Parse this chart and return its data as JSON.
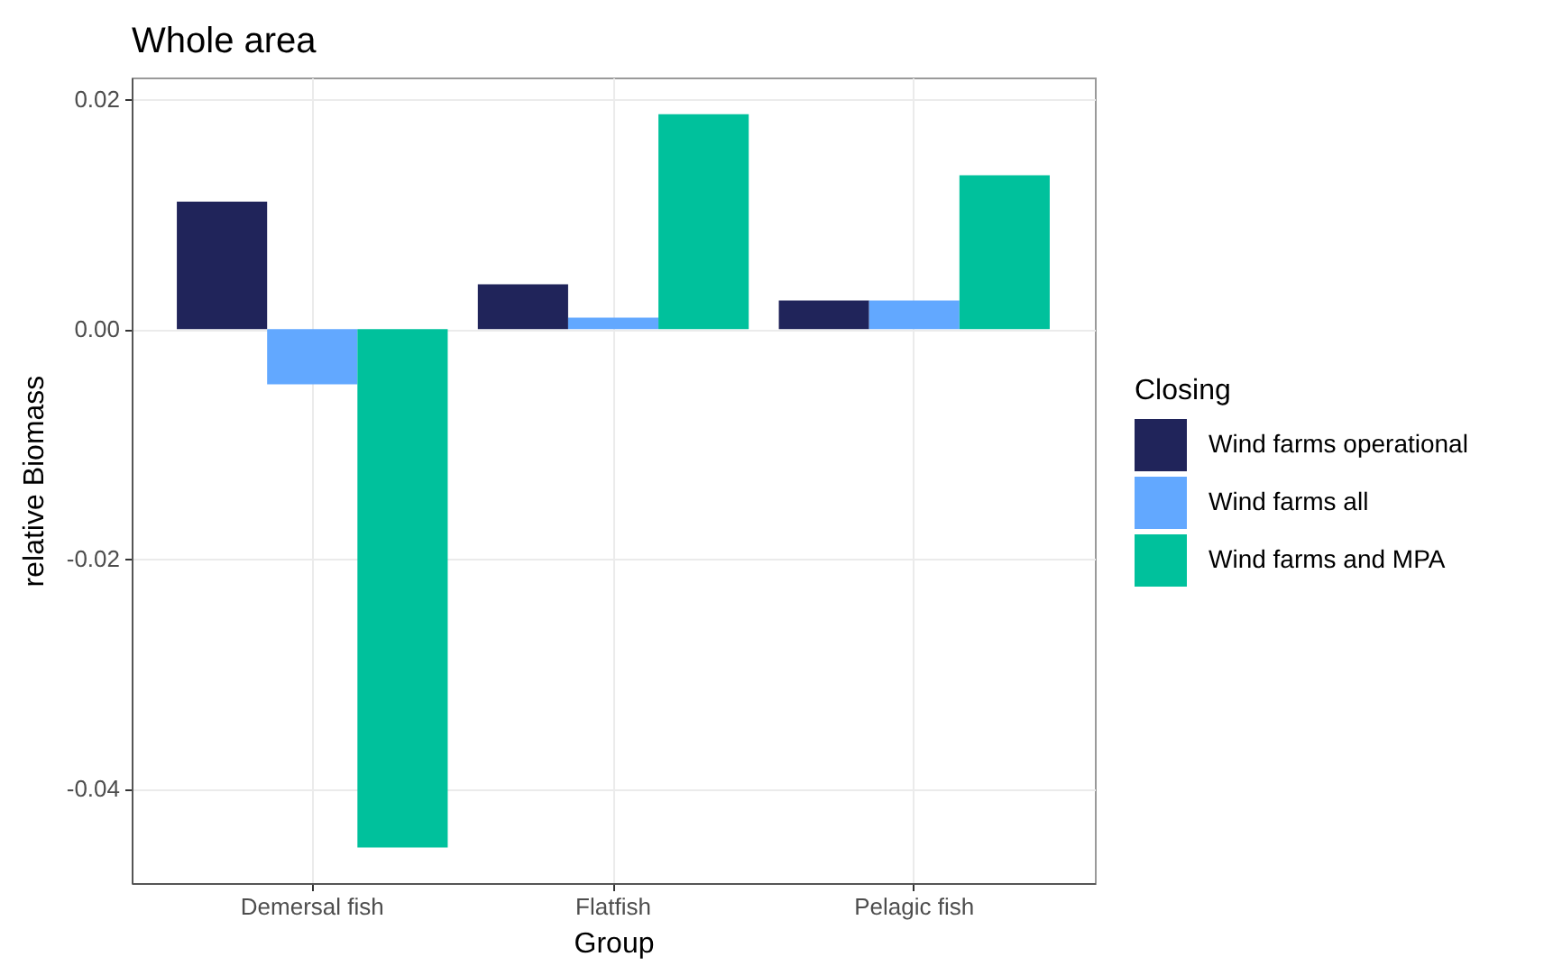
{
  "chart_data": {
    "type": "bar",
    "title": "Whole area",
    "xlabel": "Group",
    "ylabel": "relative Biomass",
    "legend_title": "Closing",
    "categories": [
      "Demersal fish",
      "Flatfish",
      "Pelagic fish"
    ],
    "series": [
      {
        "name": "Wind farms operational",
        "color": "#20245a",
        "values": [
          0.0111,
          0.0039,
          0.0025
        ]
      },
      {
        "name": "Wind farms all",
        "color": "#62a8ff",
        "values": [
          -0.0048,
          0.001,
          0.0025
        ]
      },
      {
        "name": "Wind farms and MPA",
        "color": "#00c19c",
        "values": [
          -0.0451,
          0.0187,
          0.0134
        ]
      }
    ],
    "ylim": [
      -0.0482,
      0.0219
    ],
    "yticks": [
      -0.04,
      -0.02,
      {
        "value": 0,
        "label": "0.00"
      },
      0.02
    ],
    "grid": true,
    "legend": "right"
  }
}
